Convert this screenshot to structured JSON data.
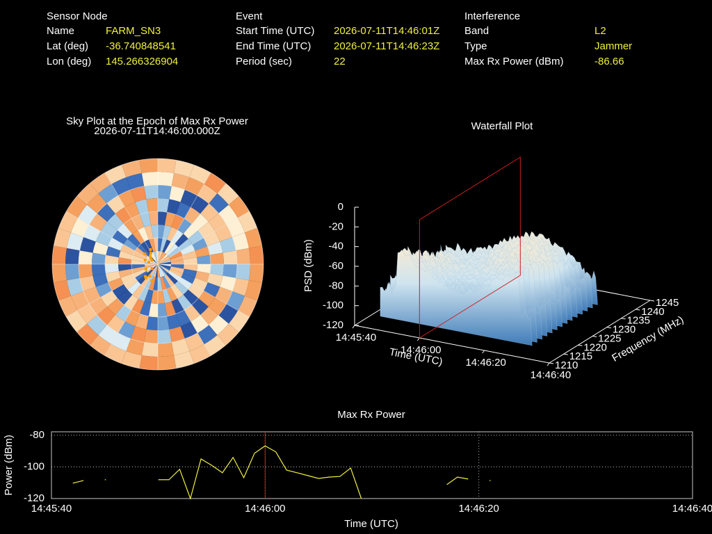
{
  "info": {
    "sections": [
      {
        "title": "Sensor Node",
        "rows": [
          [
            "Name",
            "FARM_SN3"
          ],
          [
            "Lat (deg)",
            "-36.740848541"
          ],
          [
            "Lon (deg)",
            "145.266326904"
          ]
        ]
      },
      {
        "title": "Event",
        "rows": [
          [
            "Start Time (UTC)",
            "2026-07-11T14:46:01Z"
          ],
          [
            "End Time (UTC)",
            "2026-07-11T14:46:23Z"
          ],
          [
            "Period (sec)",
            "22"
          ]
        ]
      },
      {
        "title": "Interference",
        "rows": [
          [
            "Band",
            "L2"
          ],
          [
            "Type",
            "Jammer"
          ],
          [
            "Max Rx Power (dBm)",
            "-86.66"
          ]
        ]
      }
    ]
  },
  "chart_data": [
    {
      "type": "polar-heatmap",
      "title": "Sky Plot at the Epoch of Max Rx Power",
      "subtitle": "2026-07-11T14:46:00.000Z"
    },
    {
      "type": "surface3d",
      "title": "Waterfall Plot",
      "zlabel": "PSD (dBm)",
      "xlabel": "Time (UTC)",
      "ylabel": "Frequency (MHz)",
      "xlim": [
        "14:45:40",
        "14:46:40"
      ],
      "xticks": [
        "14:45:40",
        "14:46:00",
        "14:46:20",
        "14:46:40"
      ],
      "ylim": [
        1210,
        1245
      ],
      "yticks": [
        1210,
        1215,
        1220,
        1225,
        1230,
        1235,
        1240,
        1245
      ],
      "zlim": [
        -120,
        0
      ],
      "zticks": [
        0,
        -20,
        -40,
        -60,
        -80,
        -100,
        -120
      ],
      "marker": "14:46:00",
      "marker_color": "#cc2020"
    },
    {
      "type": "line",
      "title": "Max Rx Power",
      "xlabel": "Time (UTC)",
      "ylabel": "Power (dBm)",
      "xlim": [
        "14:45:40",
        "14:46:40"
      ],
      "xticks": [
        "14:45:40",
        "14:46:00",
        "14:46:20",
        "14:46:40"
      ],
      "ylim": [
        -120,
        -77.8
      ],
      "yticks": [
        -80,
        -100,
        -120
      ],
      "grid": true,
      "marker": "14:46:00",
      "marker_color": "#cc2020",
      "x": [
        "14:45:42",
        "14:45:43",
        "14:45:44",
        "14:45:45",
        "14:45:46",
        "14:45:47",
        "14:45:48",
        "14:45:49",
        "14:45:50",
        "14:45:51",
        "14:45:52",
        "14:45:53",
        "14:45:54",
        "14:45:55",
        "14:45:56",
        "14:45:57",
        "14:45:58",
        "14:45:59",
        "14:46:00",
        "14:46:01",
        "14:46:02",
        "14:46:03",
        "14:46:04",
        "14:46:05",
        "14:46:06",
        "14:46:07",
        "14:46:08",
        "14:46:09",
        "14:46:10",
        "14:46:11",
        "14:46:12",
        "14:46:13",
        "14:46:14",
        "14:46:15",
        "14:46:16",
        "14:46:17",
        "14:46:18",
        "14:46:19",
        "14:46:20",
        "14:46:21"
      ],
      "series": [
        {
          "color": "#f0f040",
          "values": [
            -110.3,
            -108.6,
            null,
            -108.1,
            null,
            null,
            null,
            null,
            -108.1,
            -108.1,
            -101.5,
            -120,
            -95,
            -99,
            -103.7,
            -94,
            -106.8,
            -91.4,
            -86.7,
            -90.5,
            -102,
            -103.7,
            -105.5,
            -107.3,
            -106.4,
            -106,
            -100.7,
            -120,
            null,
            null,
            null,
            null,
            null,
            null,
            null,
            -111.2,
            -106.4,
            -107.7,
            null,
            -108.6
          ]
        }
      ]
    }
  ]
}
